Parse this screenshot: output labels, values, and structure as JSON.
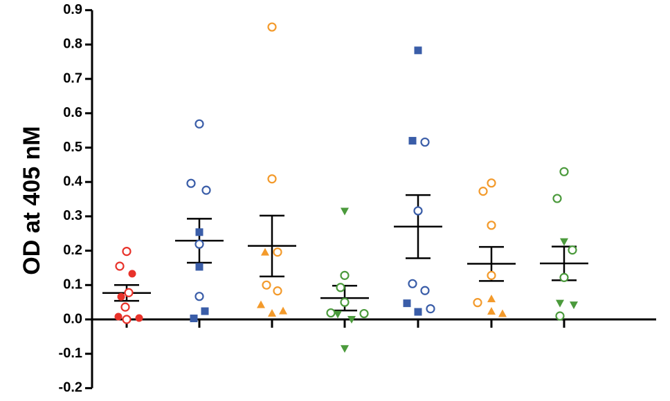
{
  "chart_data": {
    "type": "scatter",
    "ylabel": "OD at 405 nM",
    "xlabel": "",
    "ylim": [
      -0.2,
      0.9
    ],
    "yticks": [
      "0.9",
      "0.8",
      "0.7",
      "0.6",
      "0.5",
      "0.4",
      "0.3",
      "0.2",
      "0.1",
      "0.0",
      "-0.1",
      "-0.2"
    ],
    "ytick_values": [
      0.9,
      0.8,
      0.7,
      0.6,
      0.5,
      0.4,
      0.3,
      0.2,
      0.1,
      0.0,
      -0.1,
      -0.2
    ],
    "grid": false,
    "legend": "none",
    "colors": {
      "red": "#e8322a",
      "blue": "#3a5da8",
      "orange": "#f39a2b",
      "green": "#4b9a3c",
      "axis": "#000000",
      "summary": "#000000"
    },
    "groups": [
      {
        "index": 1,
        "mean": 0.077,
        "sem_upper": 0.1,
        "sem_lower": 0.054,
        "points": [
          {
            "y": 0.198,
            "marker": "circle-open",
            "color": "red"
          },
          {
            "y": 0.155,
            "marker": "circle-open",
            "color": "red"
          },
          {
            "y": 0.133,
            "marker": "circle-filled",
            "color": "red"
          },
          {
            "y": 0.078,
            "marker": "circle-open",
            "color": "red"
          },
          {
            "y": 0.066,
            "marker": "circle-filled",
            "color": "red"
          },
          {
            "y": 0.036,
            "marker": "circle-open",
            "color": "red"
          },
          {
            "y": 0.008,
            "marker": "circle-filled",
            "color": "red"
          },
          {
            "y": 0.0,
            "marker": "circle-open",
            "color": "red"
          },
          {
            "y": 0.004,
            "marker": "circle-filled",
            "color": "red"
          }
        ]
      },
      {
        "index": 2,
        "mean": 0.229,
        "sem_upper": 0.293,
        "sem_lower": 0.165,
        "points": [
          {
            "y": 0.569,
            "marker": "circle-open",
            "color": "blue"
          },
          {
            "y": 0.396,
            "marker": "circle-open",
            "color": "blue"
          },
          {
            "y": 0.376,
            "marker": "circle-open",
            "color": "blue"
          },
          {
            "y": 0.254,
            "marker": "square-filled",
            "color": "blue"
          },
          {
            "y": 0.219,
            "marker": "circle-open",
            "color": "blue"
          },
          {
            "y": 0.153,
            "marker": "square-filled",
            "color": "blue"
          },
          {
            "y": 0.067,
            "marker": "circle-open",
            "color": "blue"
          },
          {
            "y": 0.024,
            "marker": "square-filled",
            "color": "blue"
          },
          {
            "y": 0.003,
            "marker": "square-filled",
            "color": "blue"
          }
        ]
      },
      {
        "index": 3,
        "mean": 0.214,
        "sem_upper": 0.302,
        "sem_lower": 0.125,
        "points": [
          {
            "y": 0.851,
            "marker": "circle-open",
            "color": "orange"
          },
          {
            "y": 0.409,
            "marker": "circle-open",
            "color": "orange"
          },
          {
            "y": 0.196,
            "marker": "triangle-up",
            "color": "orange"
          },
          {
            "y": 0.196,
            "marker": "circle-open",
            "color": "orange"
          },
          {
            "y": 0.1,
            "marker": "circle-open",
            "color": "orange"
          },
          {
            "y": 0.083,
            "marker": "circle-open",
            "color": "orange"
          },
          {
            "y": 0.043,
            "marker": "triangle-up",
            "color": "orange"
          },
          {
            "y": 0.025,
            "marker": "triangle-up",
            "color": "orange"
          },
          {
            "y": 0.018,
            "marker": "triangle-up",
            "color": "orange"
          }
        ]
      },
      {
        "index": 4,
        "mean": 0.062,
        "sem_upper": 0.098,
        "sem_lower": 0.026,
        "points": [
          {
            "y": 0.315,
            "marker": "triangle-down",
            "color": "green"
          },
          {
            "y": 0.128,
            "marker": "circle-open",
            "color": "green"
          },
          {
            "y": 0.093,
            "marker": "circle-open",
            "color": "green"
          },
          {
            "y": 0.05,
            "marker": "circle-open",
            "color": "green"
          },
          {
            "y": 0.019,
            "marker": "circle-open",
            "color": "green"
          },
          {
            "y": 0.017,
            "marker": "circle-open",
            "color": "green"
          },
          {
            "y": 0.015,
            "marker": "triangle-down",
            "color": "green"
          },
          {
            "y": 0.0,
            "marker": "triangle-down",
            "color": "green"
          },
          {
            "y": -0.085,
            "marker": "triangle-down",
            "color": "green"
          }
        ]
      },
      {
        "index": 5,
        "mean": 0.27,
        "sem_upper": 0.362,
        "sem_lower": 0.178,
        "points": [
          {
            "y": 0.783,
            "marker": "square-filled",
            "color": "blue"
          },
          {
            "y": 0.52,
            "marker": "square-filled",
            "color": "blue"
          },
          {
            "y": 0.516,
            "marker": "circle-open",
            "color": "blue"
          },
          {
            "y": 0.316,
            "marker": "circle-open",
            "color": "blue"
          },
          {
            "y": 0.104,
            "marker": "circle-open",
            "color": "blue"
          },
          {
            "y": 0.084,
            "marker": "circle-open",
            "color": "blue"
          },
          {
            "y": 0.047,
            "marker": "square-filled",
            "color": "blue"
          },
          {
            "y": 0.031,
            "marker": "circle-open",
            "color": "blue"
          },
          {
            "y": 0.022,
            "marker": "square-filled",
            "color": "blue"
          }
        ]
      },
      {
        "index": 6,
        "mean": 0.162,
        "sem_upper": 0.211,
        "sem_lower": 0.112,
        "points": [
          {
            "y": 0.397,
            "marker": "circle-open",
            "color": "orange"
          },
          {
            "y": 0.373,
            "marker": "circle-open",
            "color": "orange"
          },
          {
            "y": 0.274,
            "marker": "circle-open",
            "color": "orange"
          },
          {
            "y": 0.128,
            "marker": "circle-open",
            "color": "orange"
          },
          {
            "y": 0.06,
            "marker": "triangle-up",
            "color": "orange"
          },
          {
            "y": 0.049,
            "marker": "circle-open",
            "color": "orange"
          },
          {
            "y": 0.024,
            "marker": "triangle-up",
            "color": "orange"
          },
          {
            "y": 0.017,
            "marker": "triangle-up",
            "color": "orange"
          }
        ]
      },
      {
        "index": 7,
        "mean": 0.163,
        "sem_upper": 0.212,
        "sem_lower": 0.114,
        "points": [
          {
            "y": 0.43,
            "marker": "circle-open",
            "color": "green"
          },
          {
            "y": 0.352,
            "marker": "circle-open",
            "color": "green"
          },
          {
            "y": 0.226,
            "marker": "triangle-down",
            "color": "green"
          },
          {
            "y": 0.202,
            "marker": "circle-open",
            "color": "green"
          },
          {
            "y": 0.122,
            "marker": "circle-open",
            "color": "green"
          },
          {
            "y": 0.047,
            "marker": "triangle-down",
            "color": "green"
          },
          {
            "y": 0.042,
            "marker": "triangle-down",
            "color": "green"
          },
          {
            "y": 0.01,
            "marker": "circle-open",
            "color": "green"
          }
        ]
      }
    ]
  }
}
